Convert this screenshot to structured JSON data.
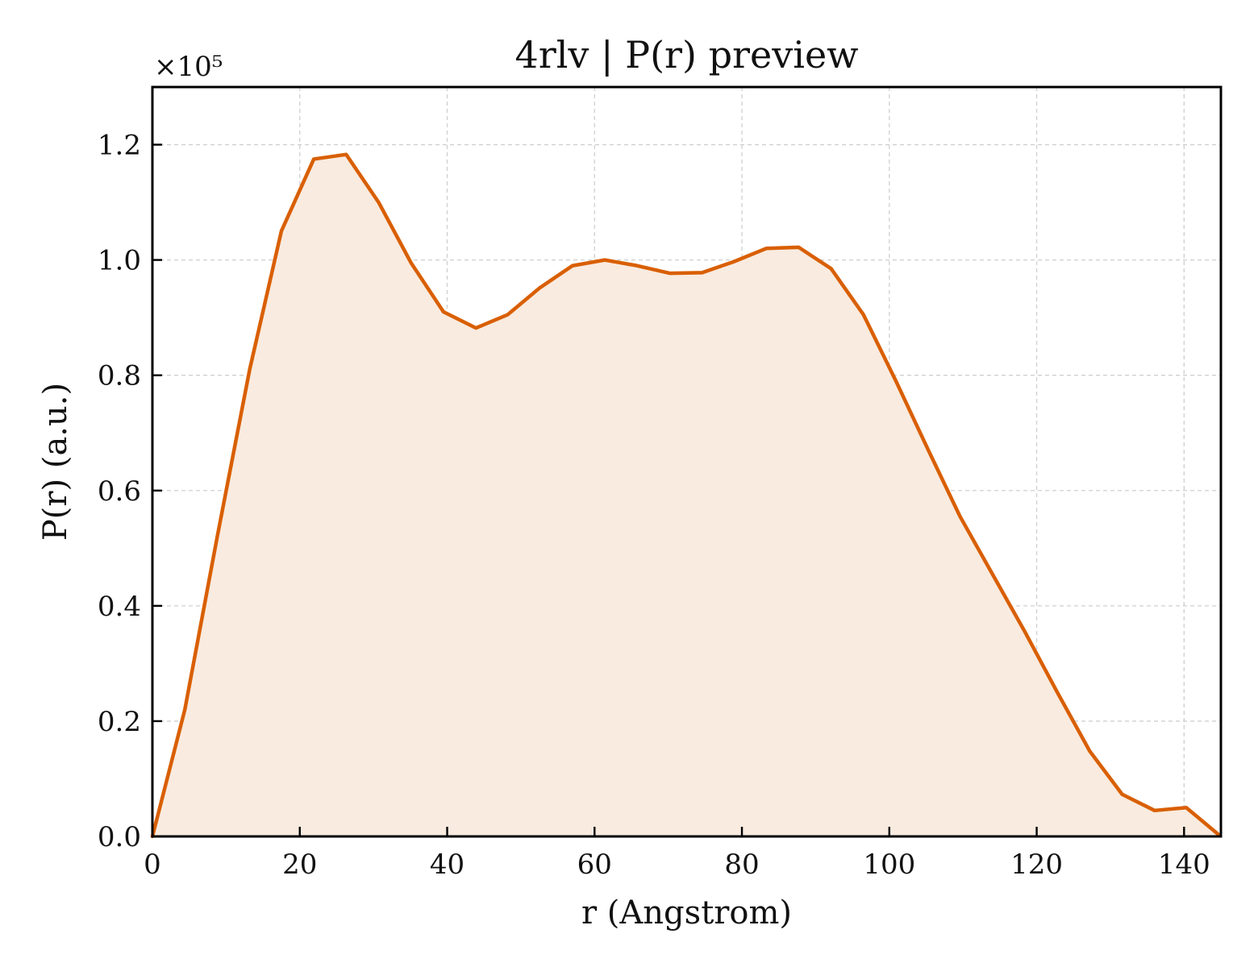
{
  "chart_data": {
    "type": "area",
    "title": "4rlv | P(r) preview",
    "xlabel": "r (Angstrom)",
    "ylabel": "P(r) (a.u.)",
    "y_multiplier_label": "×10⁵",
    "xlim": [
      0,
      145
    ],
    "ylim": [
      0,
      1.3
    ],
    "xticks": [
      0,
      20,
      40,
      60,
      80,
      100,
      120,
      140
    ],
    "yticks": [
      0.0,
      0.2,
      0.4,
      0.6,
      0.8,
      1.0,
      1.2
    ],
    "xtick_labels": [
      "0",
      "20",
      "40",
      "60",
      "80",
      "100",
      "120",
      "140"
    ],
    "ytick_labels": [
      "0.0",
      "0.2",
      "0.4",
      "0.6",
      "0.8",
      "1.0",
      "1.2"
    ],
    "grid": true,
    "line_color": "#D95F02",
    "fill_color": "#F9EBE0",
    "series": [
      {
        "x": [
          0,
          4.4,
          8.8,
          13.2,
          17.5,
          21.9,
          26.3,
          30.7,
          35.1,
          39.5,
          43.9,
          48.2,
          52.6,
          57.0,
          61.4,
          65.8,
          70.2,
          74.6,
          78.9,
          83.3,
          87.7,
          92.1,
          96.5,
          100.9,
          105.3,
          109.6,
          114.0,
          118.4,
          122.8,
          127.2,
          131.6,
          136.0,
          140.3,
          144.7
        ],
        "y": [
          0.0,
          0.22,
          0.52,
          0.81,
          1.05,
          1.175,
          1.183,
          1.1,
          0.995,
          0.91,
          0.882,
          0.905,
          0.952,
          0.99,
          1.0,
          0.99,
          0.977,
          0.978,
          0.997,
          1.02,
          1.022,
          0.985,
          0.905,
          0.79,
          0.67,
          0.555,
          0.455,
          0.355,
          0.25,
          0.148,
          0.073,
          0.045,
          0.05,
          0.003
        ]
      }
    ]
  }
}
